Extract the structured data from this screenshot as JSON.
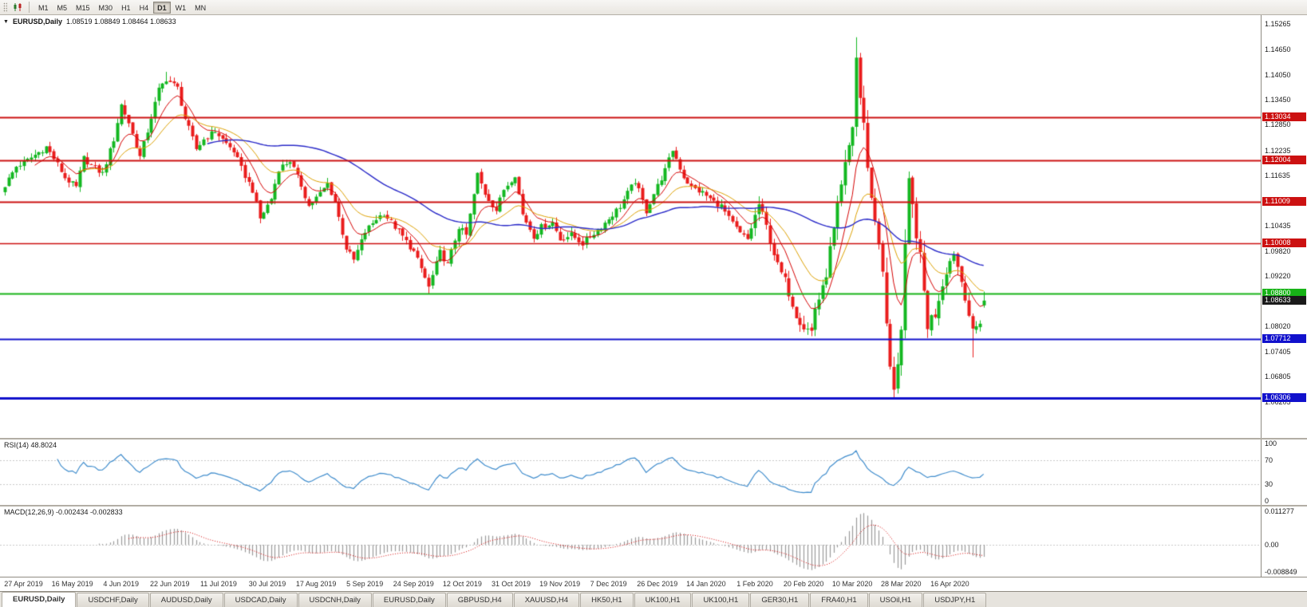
{
  "toolbar": {
    "timeframes": [
      "M1",
      "M5",
      "M15",
      "M30",
      "H1",
      "H4",
      "D1",
      "W1",
      "MN"
    ],
    "active_timeframe": "D1",
    "icons": [
      "toolbar-grip",
      "candlestick-chart-icon"
    ]
  },
  "chart": {
    "title": "EURUSD,Daily",
    "ohlc_label": "1.08519 1.08849 1.08464 1.08633"
  },
  "price_axis": {
    "max": 1.1548,
    "min": 1.0534,
    "ticks": [
      "1.15265",
      "1.14650",
      "1.14050",
      "1.13450",
      "1.12850",
      "1.12235",
      "1.11635",
      "1.10435",
      "1.09820",
      "1.09220",
      "1.08020",
      "1.07405",
      "1.06805",
      "1.06205"
    ]
  },
  "current_price": {
    "value": 1.08633,
    "label": "1.08633",
    "color": "#1a1a1a"
  },
  "indicators": {
    "rsi": {
      "label": "RSI(14) 48.8024",
      "value": "48.8024",
      "period": 14,
      "levels": [
        "100",
        "70",
        "30",
        "0"
      ],
      "color": "#3f8ccc"
    },
    "macd": {
      "label": "MACD(12,26,9) -0.002434 -0.002833",
      "values": [
        "-0.002434",
        "-0.002833"
      ],
      "axis": [
        "0.011277",
        "0.00",
        "-0.008849"
      ],
      "fast": 12,
      "slow": 26,
      "signal": 9,
      "histogram_color": "#9a9a9a",
      "signal_color": "#d40000"
    }
  },
  "x_axis": {
    "first_index": 5,
    "index_step": 13,
    "labels": [
      "27 Apr 2019",
      "16 May 2019",
      "4 Jun 2019",
      "22 Jun 2019",
      "11 Jul 2019",
      "30 Jul 2019",
      "17 Aug 2019",
      "5 Sep 2019",
      "24 Sep 2019",
      "12 Oct 2019",
      "31 Oct 2019",
      "19 Nov 2019",
      "7 Dec 2019",
      "26 Dec 2019",
      "14 Jan 2020",
      "1 Feb 2020",
      "20 Feb 2020",
      "10 Mar 2020",
      "28 Mar 2020",
      "16 Apr 2020"
    ]
  },
  "tabs": [
    "EURUSD,Daily",
    "USDCHF,Daily",
    "AUDUSD,Daily",
    "USDCAD,Daily",
    "USDCNH,Daily",
    "EURUSD,Daily",
    "GBPUSD,H4",
    "XAUUSD,H4",
    "HK50,H1",
    "UK100,H1",
    "UK100,H1",
    "GER30,H1",
    "FRA40,H1",
    "USOil,H1",
    "USDJPY,H1"
  ],
  "chart_data": {
    "type": "candlestick",
    "symbol": "EURUSD",
    "period": "Daily",
    "visible_range": {
      "start": "25 Apr 2019",
      "end": "24 Apr 2020"
    },
    "bar_count": 262,
    "last_candle": {
      "open": 1.08519,
      "high": 1.08849,
      "low": 1.08464,
      "close": 1.08633
    },
    "colors": {
      "up": "#13b721",
      "down": "#ea1c1c",
      "background": "#ffffff"
    },
    "price_anchors": [
      [
        0,
        1.114
      ],
      [
        3,
        1.1185
      ],
      [
        6,
        1.12
      ],
      [
        11,
        1.1232
      ],
      [
        14,
        1.119
      ],
      [
        16,
        1.1158
      ],
      [
        19,
        1.1135
      ],
      [
        21,
        1.1205
      ],
      [
        24,
        1.118
      ],
      [
        26,
        1.1168
      ],
      [
        29,
        1.125
      ],
      [
        31,
        1.1333
      ],
      [
        33,
        1.129
      ],
      [
        36,
        1.1208
      ],
      [
        38,
        1.127
      ],
      [
        41,
        1.1369
      ],
      [
        43,
        1.1395
      ],
      [
        46,
        1.1373
      ],
      [
        48,
        1.13
      ],
      [
        51,
        1.1227
      ],
      [
        53,
        1.125
      ],
      [
        56,
        1.127
      ],
      [
        59,
        1.124
      ],
      [
        61,
        1.1222
      ],
      [
        63,
        1.118
      ],
      [
        66,
        1.1128
      ],
      [
        68,
        1.106
      ],
      [
        71,
        1.1108
      ],
      [
        73,
        1.118
      ],
      [
        76,
        1.1199
      ],
      [
        79,
        1.114
      ],
      [
        81,
        1.109
      ],
      [
        84,
        1.112
      ],
      [
        86,
        1.1144
      ],
      [
        88,
        1.11
      ],
      [
        91,
        1.0989
      ],
      [
        93,
        1.096
      ],
      [
        96,
        1.1028
      ],
      [
        99,
        1.106
      ],
      [
        101,
        1.1073
      ],
      [
        104,
        1.104
      ],
      [
        106,
        1.1017
      ],
      [
        109,
        1.098
      ],
      [
        111,
        1.094
      ],
      [
        113,
        1.0895
      ],
      [
        116,
        1.0979
      ],
      [
        118,
        1.095
      ],
      [
        121,
        1.104
      ],
      [
        123,
        1.102
      ],
      [
        126,
        1.1166
      ],
      [
        128,
        1.112
      ],
      [
        131,
        1.108
      ],
      [
        133,
        1.113
      ],
      [
        136,
        1.1166
      ],
      [
        138,
        1.107
      ],
      [
        141,
        1.1018
      ],
      [
        143,
        1.104
      ],
      [
        146,
        1.1051
      ],
      [
        148,
        1.101
      ],
      [
        151,
        1.1021
      ],
      [
        154,
        1.1
      ],
      [
        156,
        1.1018
      ],
      [
        159,
        1.104
      ],
      [
        161,
        1.106
      ],
      [
        164,
        1.109
      ],
      [
        166,
        1.1121
      ],
      [
        168,
        1.115
      ],
      [
        171,
        1.1078
      ],
      [
        173,
        1.112
      ],
      [
        176,
        1.1176
      ],
      [
        178,
        1.1225
      ],
      [
        181,
        1.116
      ],
      [
        183,
        1.1135
      ],
      [
        186,
        1.1122
      ],
      [
        189,
        1.11
      ],
      [
        191,
        1.109
      ],
      [
        193,
        1.106
      ],
      [
        196,
        1.1024
      ],
      [
        198,
        1.101
      ],
      [
        201,
        1.1094
      ],
      [
        203,
        1.104
      ],
      [
        206,
        1.0946
      ],
      [
        208,
        1.091
      ],
      [
        211,
        1.0831
      ],
      [
        213,
        1.08
      ],
      [
        215,
        1.079
      ],
      [
        216,
        1.0846
      ],
      [
        218,
        1.089
      ],
      [
        221,
        1.1026
      ],
      [
        223,
        1.113
      ],
      [
        226,
        1.1284
      ],
      [
        227,
        1.1446
      ],
      [
        228,
        1.135
      ],
      [
        229,
        1.128
      ],
      [
        231,
        1.1106
      ],
      [
        233,
        1.101
      ],
      [
        234,
        1.092
      ],
      [
        236,
        1.0694
      ],
      [
        237,
        1.066
      ],
      [
        238,
        1.072
      ],
      [
        239,
        1.079
      ],
      [
        240,
        1.098
      ],
      [
        241,
        1.114
      ],
      [
        243,
        1.103
      ],
      [
        244,
        1.096
      ],
      [
        246,
        1.0808
      ],
      [
        248,
        1.083
      ],
      [
        249,
        1.087
      ],
      [
        251,
        1.0936
      ],
      [
        253,
        1.098
      ],
      [
        255,
        1.091
      ],
      [
        256,
        1.0875
      ],
      [
        258,
        1.0785
      ],
      [
        260,
        1.0815
      ],
      [
        261,
        1.08633
      ]
    ],
    "spikes": [
      {
        "i": 43,
        "high": 1.1412
      },
      {
        "i": 113,
        "low": 1.0879
      },
      {
        "i": 215,
        "low": 1.0778
      },
      {
        "i": 227,
        "high": 1.1495
      },
      {
        "i": 237,
        "low": 1.0636
      },
      {
        "i": 258,
        "low": 1.0727
      }
    ],
    "moving_averages": [
      {
        "type": "ema",
        "period": 9,
        "color": "#d40000",
        "width": 1
      },
      {
        "type": "ema",
        "period": 21,
        "color": "#dca000",
        "width": 1
      },
      {
        "type": "sma",
        "period": 55,
        "color": "#2a2ac8",
        "width": 1.4
      }
    ],
    "horizontal_lines": [
      {
        "price": 1.13034,
        "label": "1.13034",
        "color": "#cc1111",
        "width": 2
      },
      {
        "price": 1.12004,
        "label": "1.12004",
        "color": "#cc1111",
        "width": 2
      },
      {
        "price": 1.11009,
        "label": "1.11009",
        "color": "#cc1111",
        "width": 2
      },
      {
        "price": 1.10008,
        "label": "1.10008",
        "color": "#cc1111",
        "width": 1.5
      },
      {
        "price": 1.088,
        "label": "1.08800",
        "color": "#17b317",
        "width": 2
      },
      {
        "price": 1.07712,
        "label": "1.07712",
        "color": "#1111cc",
        "width": 2
      },
      {
        "price": 1.06306,
        "label": "1.06306",
        "color": "#1111cc",
        "width": 3
      }
    ]
  }
}
